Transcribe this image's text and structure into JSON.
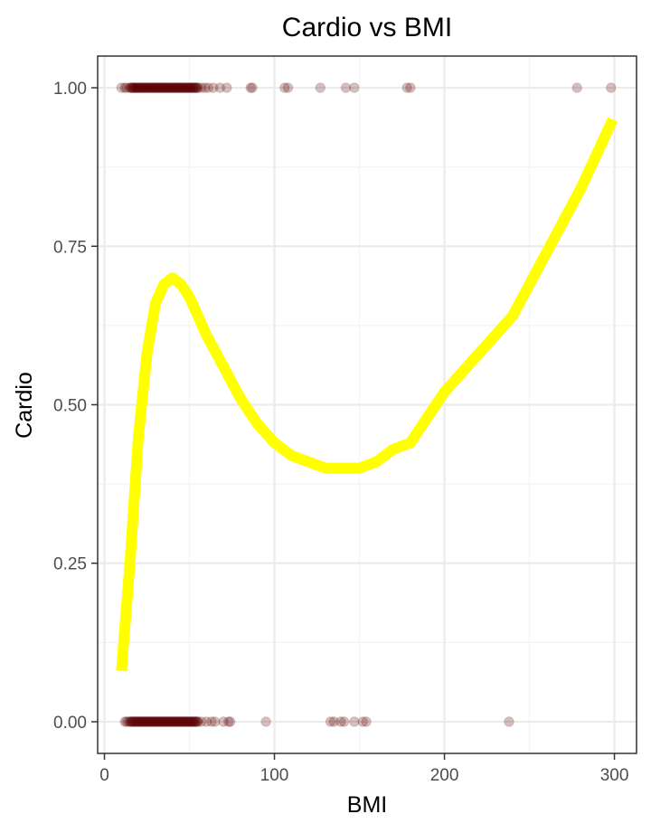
{
  "chart_data": {
    "type": "scatter",
    "title": "Cardio vs BMI",
    "xlabel": "BMI",
    "ylabel": "Cardio",
    "xlim": [
      -4,
      313
    ],
    "ylim": [
      -0.05,
      1.05
    ],
    "x_ticks": [
      0,
      100,
      200,
      300
    ],
    "x_tick_labels": [
      "0",
      "100",
      "200",
      "300"
    ],
    "x_minor_ticks": [
      50,
      150,
      250
    ],
    "y_ticks": [
      0,
      0.25,
      0.5,
      0.75,
      1
    ],
    "y_tick_labels": [
      "0.00",
      "0.25",
      "0.50",
      "0.75",
      "1.00"
    ],
    "y_minor_ticks": [
      0.125,
      0.375,
      0.625,
      0.875
    ],
    "grid": true,
    "colors": {
      "points": "#5a0000",
      "smooth": "#ffff00",
      "grid_major": "#ebebeb",
      "grid_minor": "#f4f4f4",
      "panel_border": "#333333",
      "tick_text": "#4d4d4d"
    },
    "point_opacity": 0.25,
    "dense_ranges": [
      {
        "y": 1,
        "x_from": 15,
        "x_to": 55,
        "step": 0.5
      },
      {
        "y": 0,
        "x_from": 15,
        "x_to": 55,
        "step": 0.5
      }
    ],
    "points": [
      {
        "x": 10,
        "y": 1
      },
      {
        "x": 12,
        "y": 1
      },
      {
        "x": 13,
        "y": 1
      },
      {
        "x": 57,
        "y": 1
      },
      {
        "x": 59,
        "y": 1
      },
      {
        "x": 61,
        "y": 1
      },
      {
        "x": 64,
        "y": 1
      },
      {
        "x": 68,
        "y": 1
      },
      {
        "x": 72,
        "y": 1
      },
      {
        "x": 86,
        "y": 1
      },
      {
        "x": 87,
        "y": 1
      },
      {
        "x": 106,
        "y": 1
      },
      {
        "x": 108,
        "y": 1
      },
      {
        "x": 127,
        "y": 1
      },
      {
        "x": 142,
        "y": 1
      },
      {
        "x": 147,
        "y": 1
      },
      {
        "x": 178,
        "y": 1
      },
      {
        "x": 180,
        "y": 1
      },
      {
        "x": 278,
        "y": 1
      },
      {
        "x": 298,
        "y": 1
      },
      {
        "x": 12,
        "y": 0
      },
      {
        "x": 13,
        "y": 0
      },
      {
        "x": 14,
        "y": 0
      },
      {
        "x": 57,
        "y": 0
      },
      {
        "x": 60,
        "y": 0
      },
      {
        "x": 63,
        "y": 0
      },
      {
        "x": 65,
        "y": 0
      },
      {
        "x": 70,
        "y": 0
      },
      {
        "x": 73,
        "y": 0
      },
      {
        "x": 74,
        "y": 0
      },
      {
        "x": 95,
        "y": 0
      },
      {
        "x": 133,
        "y": 0
      },
      {
        "x": 135,
        "y": 0
      },
      {
        "x": 139,
        "y": 0
      },
      {
        "x": 141,
        "y": 0
      },
      {
        "x": 147,
        "y": 0
      },
      {
        "x": 152,
        "y": 0
      },
      {
        "x": 154,
        "y": 0
      },
      {
        "x": 238,
        "y": 0
      }
    ],
    "smooth_curve": {
      "x": [
        10,
        15,
        20,
        25,
        30,
        35,
        40,
        45,
        50,
        55,
        60,
        70,
        80,
        90,
        100,
        110,
        120,
        130,
        140,
        150,
        160,
        170,
        180,
        190,
        200,
        220,
        240,
        260,
        280,
        299
      ],
      "y": [
        0.08,
        0.25,
        0.45,
        0.58,
        0.66,
        0.69,
        0.7,
        0.69,
        0.67,
        0.64,
        0.61,
        0.56,
        0.51,
        0.47,
        0.44,
        0.42,
        0.41,
        0.4,
        0.4,
        0.4,
        0.41,
        0.43,
        0.44,
        0.48,
        0.52,
        0.58,
        0.64,
        0.74,
        0.84,
        0.95
      ]
    }
  }
}
